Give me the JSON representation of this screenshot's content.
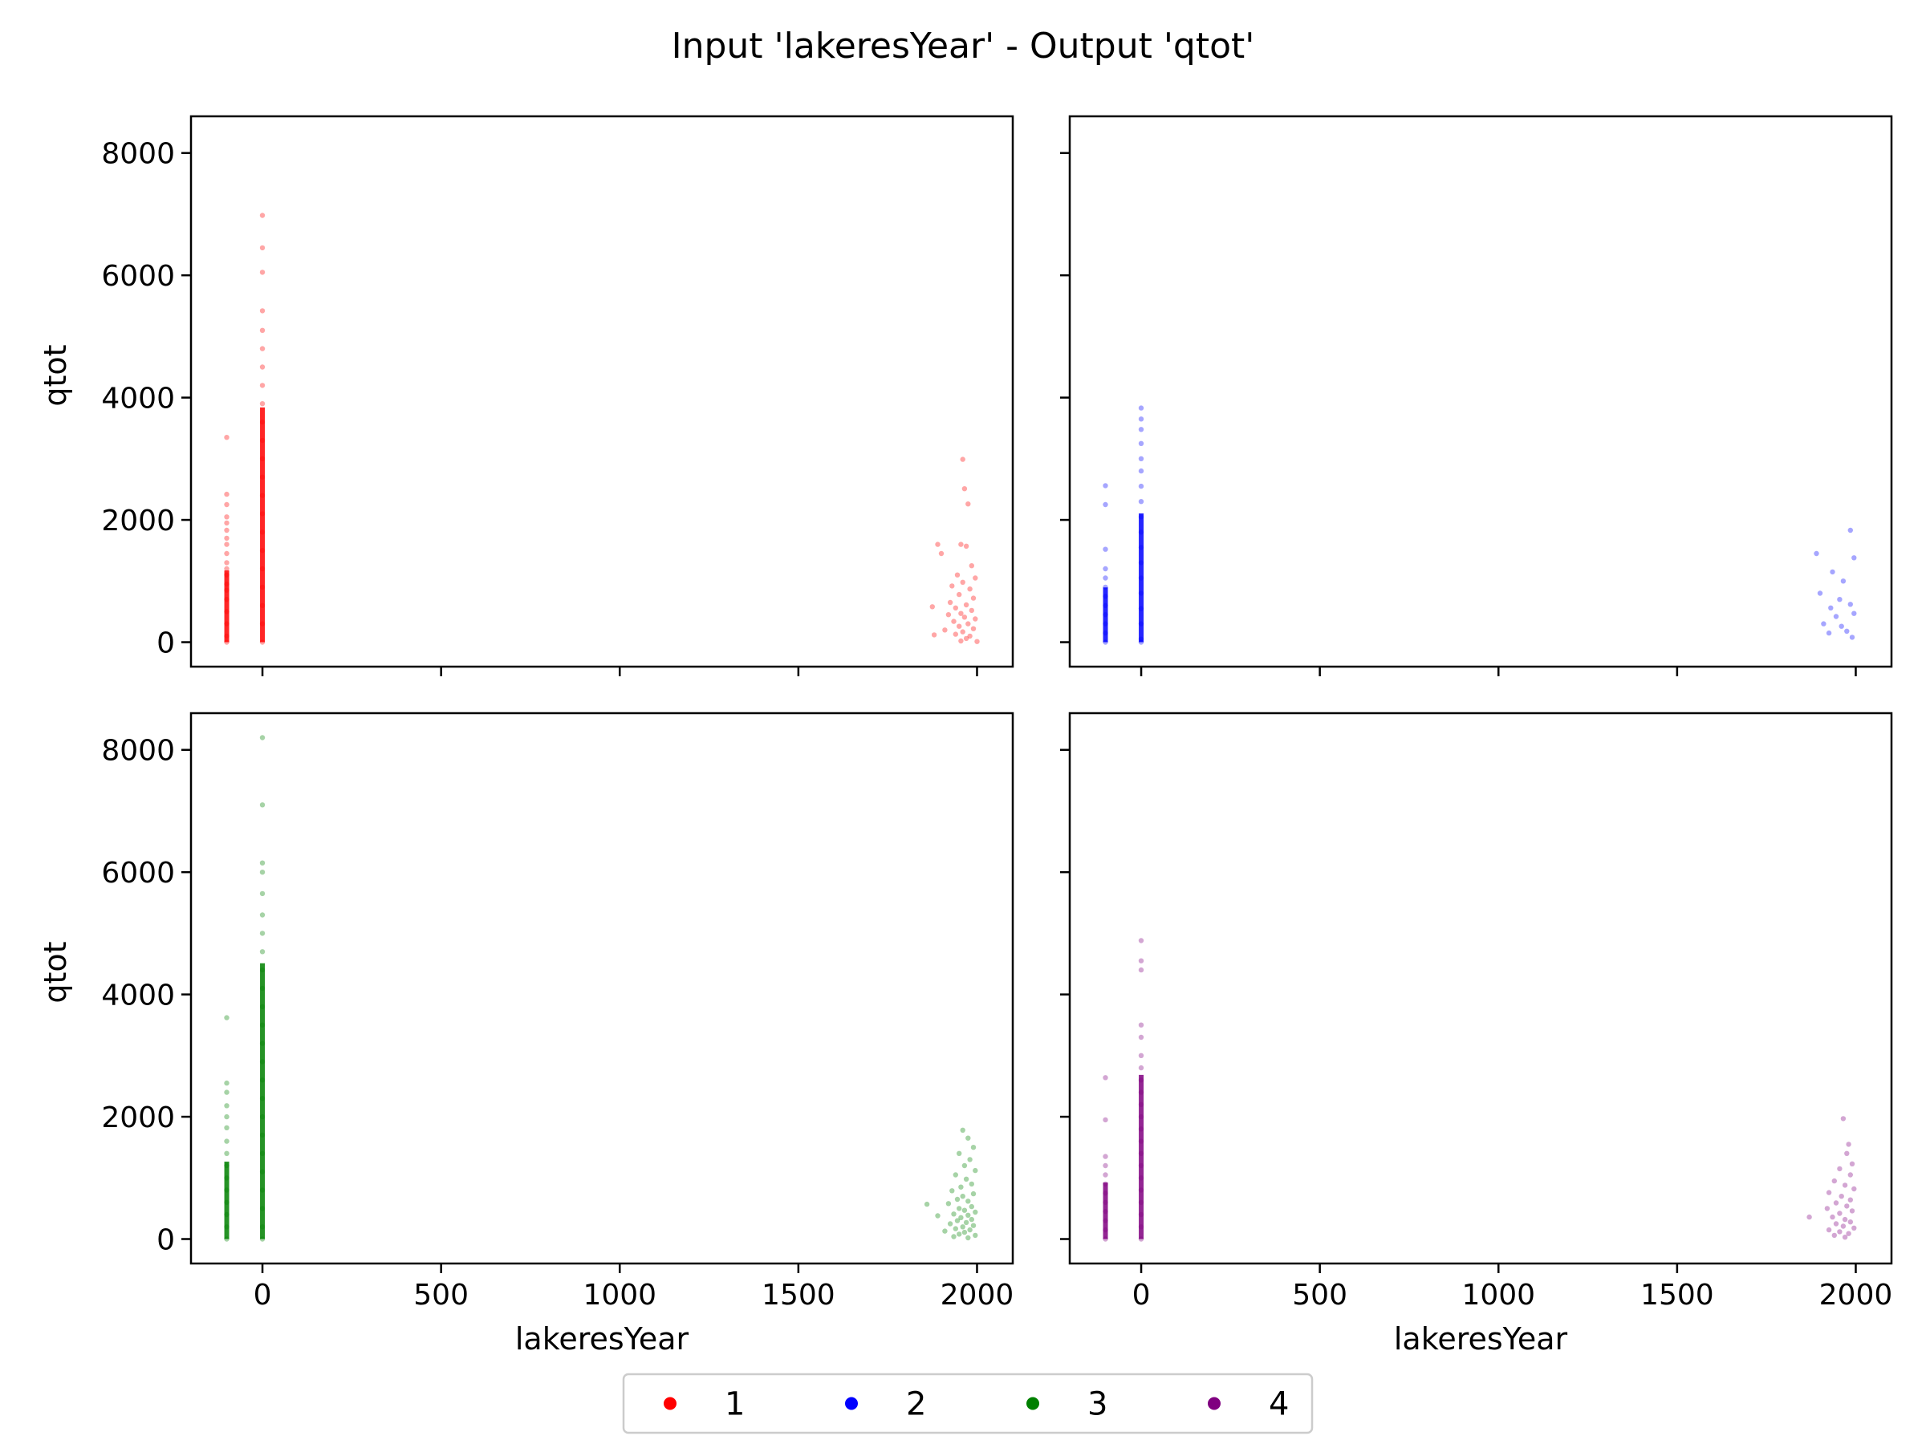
{
  "figure": {
    "title": "Input 'lakeresYear' - Output 'qtot'"
  },
  "chart_data": {
    "type": "scatter",
    "title": "Input 'lakeresYear' - Output 'qtot'",
    "xlabel": "lakeresYear",
    "ylabel": "qtot",
    "xlim": [
      -200,
      2100
    ],
    "ylim": [
      -400,
      8600
    ],
    "xticks": [
      0,
      500,
      1000,
      1500,
      2000
    ],
    "yticks": [
      0,
      2000,
      4000,
      6000,
      8000
    ],
    "grid": false,
    "legend": {
      "placement": "bottom-center",
      "entries": [
        "1",
        "2",
        "3",
        "4"
      ]
    },
    "panels": [
      {
        "series": "1",
        "color": "#ff0000",
        "points": [
          [
            -100,
            3350
          ],
          [
            -100,
            2420
          ],
          [
            -100,
            2250
          ],
          [
            -100,
            2050
          ],
          [
            -100,
            1950
          ],
          [
            -100,
            1830
          ],
          [
            -100,
            1700
          ],
          [
            -100,
            1600
          ],
          [
            -100,
            1450
          ],
          [
            -100,
            1300
          ],
          [
            -100,
            1200
          ],
          [
            -100,
            1100
          ],
          [
            -100,
            950
          ],
          [
            -100,
            850
          ],
          [
            -100,
            700
          ],
          [
            -100,
            500
          ],
          [
            -100,
            300
          ],
          [
            -100,
            100
          ],
          [
            -100,
            0
          ],
          [
            0,
            6980
          ],
          [
            0,
            6450
          ],
          [
            0,
            6050
          ],
          [
            0,
            5420
          ],
          [
            0,
            5100
          ],
          [
            0,
            4800
          ],
          [
            0,
            4500
          ],
          [
            0,
            4200
          ],
          [
            0,
            3900
          ],
          [
            0,
            3600
          ],
          [
            0,
            3300
          ],
          [
            0,
            3000
          ],
          [
            0,
            2700
          ],
          [
            0,
            2400
          ],
          [
            0,
            2100
          ],
          [
            0,
            1800
          ],
          [
            0,
            1500
          ],
          [
            0,
            1200
          ],
          [
            0,
            900
          ],
          [
            0,
            600
          ],
          [
            0,
            300
          ],
          [
            0,
            0
          ],
          [
            1960,
            2990
          ],
          [
            1965,
            2510
          ],
          [
            1975,
            2260
          ],
          [
            1955,
            1600
          ],
          [
            1970,
            1570
          ],
          [
            1890,
            1600
          ],
          [
            1900,
            1450
          ],
          [
            1985,
            1250
          ],
          [
            1945,
            1100
          ],
          [
            1995,
            1050
          ],
          [
            1960,
            980
          ],
          [
            1930,
            920
          ],
          [
            1980,
            870
          ],
          [
            1950,
            780
          ],
          [
            1990,
            720
          ],
          [
            1925,
            650
          ],
          [
            1970,
            610
          ],
          [
            1940,
            560
          ],
          [
            1875,
            580
          ],
          [
            1985,
            520
          ],
          [
            1955,
            470
          ],
          [
            1920,
            450
          ],
          [
            1965,
            410
          ],
          [
            1995,
            380
          ],
          [
            1935,
            340
          ],
          [
            1975,
            300
          ],
          [
            1950,
            260
          ],
          [
            1990,
            220
          ],
          [
            1910,
            200
          ],
          [
            1960,
            170
          ],
          [
            1940,
            130
          ],
          [
            1980,
            100
          ],
          [
            1880,
            120
          ],
          [
            1970,
            60
          ],
          [
            1955,
            20
          ],
          [
            2000,
            10
          ]
        ]
      },
      {
        "series": "2",
        "color": "#0000ff",
        "points": [
          [
            -100,
            2560
          ],
          [
            -100,
            2250
          ],
          [
            -100,
            1520
          ],
          [
            -100,
            1200
          ],
          [
            -100,
            1050
          ],
          [
            -100,
            900
          ],
          [
            -100,
            750
          ],
          [
            -100,
            600
          ],
          [
            -100,
            450
          ],
          [
            -100,
            300
          ],
          [
            -100,
            150
          ],
          [
            -100,
            0
          ],
          [
            0,
            3830
          ],
          [
            0,
            3650
          ],
          [
            0,
            3480
          ],
          [
            0,
            3250
          ],
          [
            0,
            3000
          ],
          [
            0,
            2800
          ],
          [
            0,
            2550
          ],
          [
            0,
            2300
          ],
          [
            0,
            2050
          ],
          [
            0,
            1800
          ],
          [
            0,
            1550
          ],
          [
            0,
            1300
          ],
          [
            0,
            1050
          ],
          [
            0,
            800
          ],
          [
            0,
            550
          ],
          [
            0,
            300
          ],
          [
            0,
            50
          ],
          [
            0,
            0
          ],
          [
            1985,
            1830
          ],
          [
            1890,
            1450
          ],
          [
            1995,
            1380
          ],
          [
            1935,
            1150
          ],
          [
            1965,
            1000
          ],
          [
            1900,
            800
          ],
          [
            1955,
            700
          ],
          [
            1985,
            620
          ],
          [
            1930,
            560
          ],
          [
            1995,
            470
          ],
          [
            1945,
            420
          ],
          [
            1910,
            300
          ],
          [
            1960,
            260
          ],
          [
            1975,
            180
          ],
          [
            1925,
            150
          ],
          [
            1990,
            80
          ]
        ]
      },
      {
        "series": "3",
        "color": "#008000",
        "points": [
          [
            -100,
            3620
          ],
          [
            -100,
            2550
          ],
          [
            -100,
            2400
          ],
          [
            -100,
            2180
          ],
          [
            -100,
            2000
          ],
          [
            -100,
            1820
          ],
          [
            -100,
            1600
          ],
          [
            -100,
            1400
          ],
          [
            -100,
            1200
          ],
          [
            -100,
            1000
          ],
          [
            -100,
            800
          ],
          [
            -100,
            600
          ],
          [
            -100,
            400
          ],
          [
            -100,
            200
          ],
          [
            -100,
            0
          ],
          [
            0,
            8200
          ],
          [
            0,
            7100
          ],
          [
            0,
            6150
          ],
          [
            0,
            6000
          ],
          [
            0,
            5650
          ],
          [
            0,
            5300
          ],
          [
            0,
            5000
          ],
          [
            0,
            4700
          ],
          [
            0,
            4400
          ],
          [
            0,
            4100
          ],
          [
            0,
            3800
          ],
          [
            0,
            3500
          ],
          [
            0,
            3200
          ],
          [
            0,
            2900
          ],
          [
            0,
            2600
          ],
          [
            0,
            2300
          ],
          [
            0,
            2000
          ],
          [
            0,
            1700
          ],
          [
            0,
            1400
          ],
          [
            0,
            1100
          ],
          [
            0,
            800
          ],
          [
            0,
            500
          ],
          [
            0,
            200
          ],
          [
            0,
            0
          ],
          [
            1960,
            1780
          ],
          [
            1975,
            1650
          ],
          [
            1990,
            1500
          ],
          [
            1950,
            1400
          ],
          [
            1980,
            1300
          ],
          [
            1965,
            1200
          ],
          [
            1995,
            1120
          ],
          [
            1940,
            1050
          ],
          [
            1970,
            980
          ],
          [
            1985,
            900
          ],
          [
            1955,
            850
          ],
          [
            1930,
            790
          ],
          [
            1990,
            740
          ],
          [
            1960,
            700
          ],
          [
            1945,
            650
          ],
          [
            1975,
            620
          ],
          [
            1920,
            580
          ],
          [
            1860,
            570
          ],
          [
            1985,
            530
          ],
          [
            1950,
            500
          ],
          [
            1965,
            470
          ],
          [
            1995,
            440
          ],
          [
            1935,
            410
          ],
          [
            1975,
            390
          ],
          [
            1890,
            380
          ],
          [
            1955,
            350
          ],
          [
            1985,
            320
          ],
          [
            1945,
            300
          ],
          [
            1970,
            270
          ],
          [
            1925,
            250
          ],
          [
            1990,
            220
          ],
          [
            1960,
            200
          ],
          [
            1940,
            170
          ],
          [
            1980,
            150
          ],
          [
            1910,
            130
          ],
          [
            1965,
            110
          ],
          [
            1950,
            80
          ],
          [
            1995,
            60
          ],
          [
            1935,
            40
          ],
          [
            1975,
            20
          ]
        ]
      },
      {
        "series": "4",
        "color": "#800080",
        "points": [
          [
            -100,
            2640
          ],
          [
            -100,
            1950
          ],
          [
            -100,
            1350
          ],
          [
            -100,
            1200
          ],
          [
            -100,
            1050
          ],
          [
            -100,
            900
          ],
          [
            -100,
            750
          ],
          [
            -100,
            600
          ],
          [
            -100,
            450
          ],
          [
            -100,
            300
          ],
          [
            -100,
            150
          ],
          [
            -100,
            0
          ],
          [
            0,
            4880
          ],
          [
            0,
            4550
          ],
          [
            0,
            4400
          ],
          [
            0,
            3500
          ],
          [
            0,
            3300
          ],
          [
            0,
            3000
          ],
          [
            0,
            2800
          ],
          [
            0,
            2600
          ],
          [
            0,
            2400
          ],
          [
            0,
            2200
          ],
          [
            0,
            2000
          ],
          [
            0,
            1800
          ],
          [
            0,
            1600
          ],
          [
            0,
            1400
          ],
          [
            0,
            1200
          ],
          [
            0,
            1000
          ],
          [
            0,
            800
          ],
          [
            0,
            600
          ],
          [
            0,
            400
          ],
          [
            0,
            200
          ],
          [
            0,
            0
          ],
          [
            1965,
            1970
          ],
          [
            1980,
            1550
          ],
          [
            1975,
            1400
          ],
          [
            1990,
            1230
          ],
          [
            1955,
            1150
          ],
          [
            1985,
            1050
          ],
          [
            1940,
            950
          ],
          [
            1970,
            880
          ],
          [
            1995,
            820
          ],
          [
            1925,
            760
          ],
          [
            1960,
            700
          ],
          [
            1985,
            640
          ],
          [
            1945,
            590
          ],
          [
            1975,
            540
          ],
          [
            1920,
            500
          ],
          [
            1990,
            460
          ],
          [
            1955,
            420
          ],
          [
            1870,
            360
          ],
          [
            1935,
            360
          ],
          [
            1970,
            320
          ],
          [
            1985,
            280
          ],
          [
            1945,
            250
          ],
          [
            1965,
            210
          ],
          [
            1995,
            180
          ],
          [
            1925,
            150
          ],
          [
            1955,
            120
          ],
          [
            1980,
            90
          ],
          [
            1940,
            60
          ],
          [
            1970,
            30
          ]
        ]
      }
    ]
  }
}
